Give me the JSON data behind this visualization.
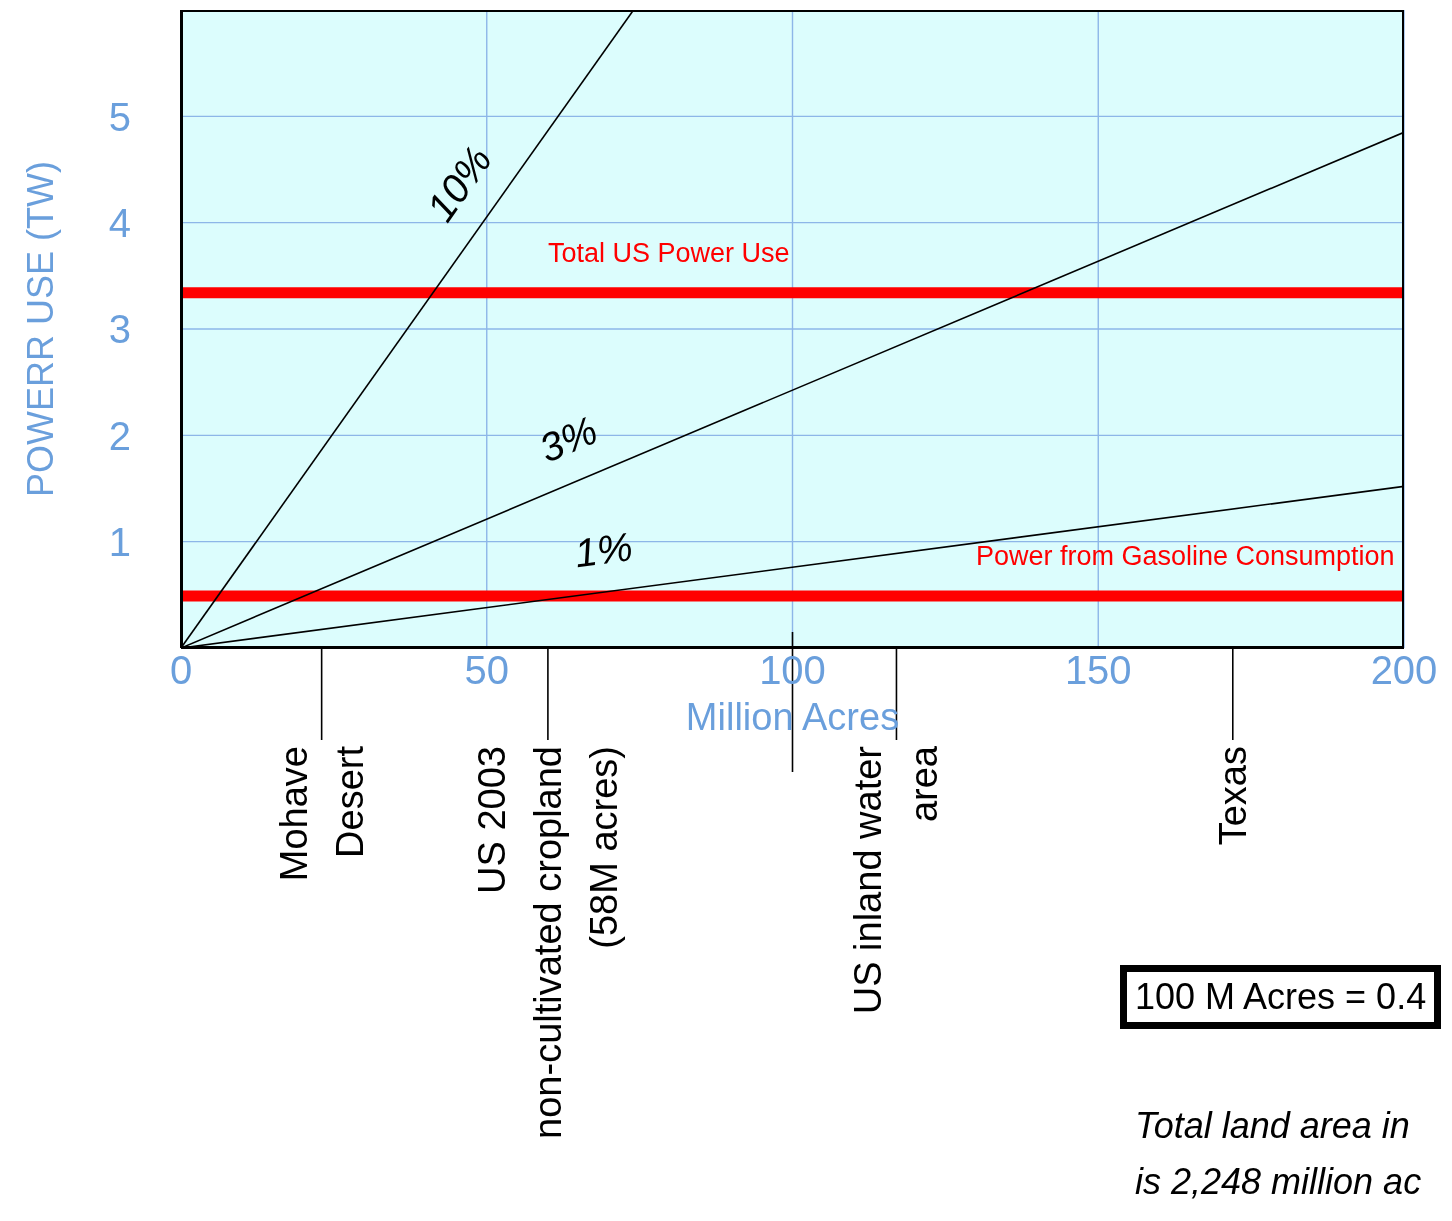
{
  "chart_data": {
    "type": "line",
    "xlabel": "Million Acres",
    "ylabel": "POWERR USE (TW)",
    "series": [
      {
        "name": "10%",
        "color": "#000000",
        "x": [
          0,
          74
        ],
        "values": [
          0,
          6
        ]
      },
      {
        "name": "3%",
        "color": "#000000",
        "x": [
          0,
          200
        ],
        "values": [
          0,
          4.85
        ]
      },
      {
        "name": "1%",
        "color": "#000000",
        "x": [
          0,
          200
        ],
        "values": [
          0,
          1.52
        ]
      }
    ],
    "xlim": [
      0,
      200
    ],
    "xticks": [
      0,
      50,
      100,
      150,
      200
    ],
    "ylim": [
      0,
      6
    ],
    "yticks": [
      1,
      2,
      3,
      4,
      5
    ],
    "grid": true,
    "marker": "none",
    "line_style": "solid",
    "ref_lines": [
      {
        "axis": "y",
        "value": 3.34,
        "label": "Total US Power Use",
        "color": "#ff0000"
      },
      {
        "axis": "y",
        "value": 0.49,
        "label": "Power from Gasoline Consumption",
        "color": "#ff0000"
      },
      {
        "axis": "x",
        "value": 23,
        "label": "Mohave\nDesert",
        "color": "#000000"
      },
      {
        "axis": "x",
        "value": 60,
        "label": "US 2003\nnon-cultivated cropland\n(58M acres)",
        "color": "#000000"
      },
      {
        "axis": "x",
        "value": 100
      },
      {
        "axis": "x",
        "value": 117,
        "label": "US inland water\narea",
        "color": "#000000"
      },
      {
        "axis": "x",
        "value": 172,
        "label": "Texas",
        "color": "#000000"
      }
    ],
    "annotations": [
      "100 M Acres = 0.4",
      "Total land area in\nis 2,248 million ac"
    ]
  }
}
